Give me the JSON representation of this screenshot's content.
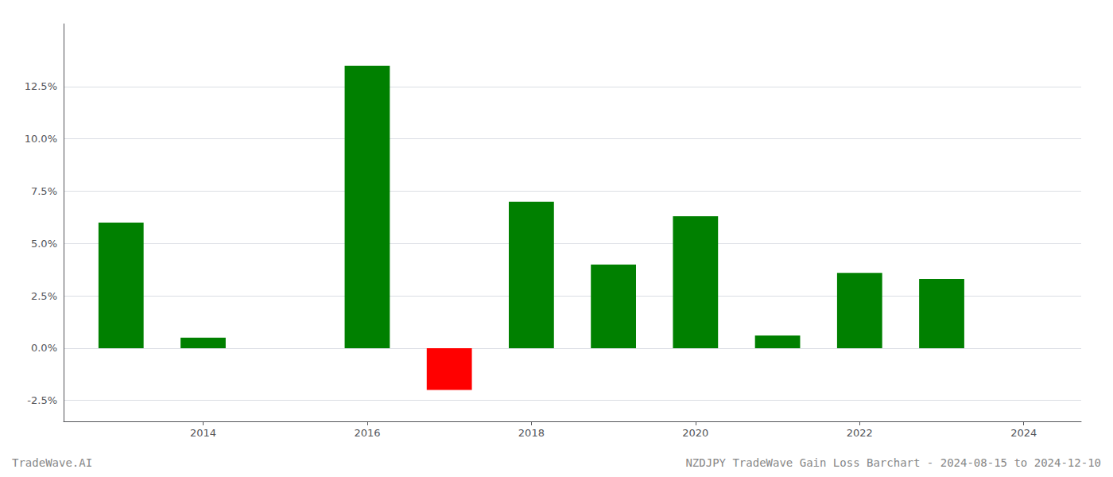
{
  "chart_data": {
    "type": "bar",
    "title": "NZDJPY TradeWave Gain Loss Barchart - 2024-08-15 to 2024-12-10",
    "annotations": [
      "TradeWave.AI"
    ],
    "x": [
      2013,
      2014,
      2016,
      2017,
      2018,
      2019,
      2020,
      2021,
      2022,
      2023
    ],
    "values": [
      0.06,
      0.005,
      0.135,
      -0.02,
      0.07,
      0.04,
      0.063,
      0.006,
      0.036,
      0.033
    ],
    "colors": [
      "#008000",
      "#008000",
      "#008000",
      "#ff0000",
      "#008000",
      "#008000",
      "#008000",
      "#008000",
      "#008000",
      "#008000"
    ],
    "xlim": [
      2012.3,
      2024.7
    ],
    "xticks": [
      2014,
      2016,
      2018,
      2020,
      2022,
      2024
    ],
    "ylim": [
      -0.035,
      0.155
    ],
    "yticks": [
      {
        "value": -0.025,
        "label": "-2.5%"
      },
      {
        "value": 0.0,
        "label": "0.0%"
      },
      {
        "value": 0.025,
        "label": "2.5%"
      },
      {
        "value": 0.05,
        "label": "5.0%"
      },
      {
        "value": 0.075,
        "label": "7.5%"
      },
      {
        "value": 0.1,
        "label": "10.0%"
      },
      {
        "value": 0.125,
        "label": "12.5%"
      }
    ],
    "grid": true
  }
}
